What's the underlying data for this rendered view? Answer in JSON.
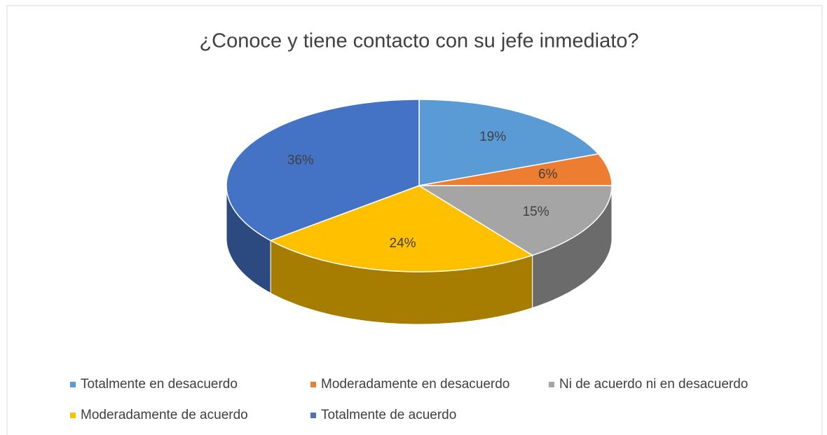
{
  "chart_data": {
    "type": "pie",
    "title": "¿Conoce y tiene contacto con su jefe inmediato?",
    "categories": [
      "Totalmente en desacuerdo",
      "Moderadamente en desacuerdo",
      "Ni de acuerdo ni en desacuerdo",
      "Moderadamente de acuerdo",
      "Totalmente de acuerdo"
    ],
    "values": [
      19,
      6,
      15,
      24,
      36
    ],
    "value_labels": [
      "19%",
      "6%",
      "15%",
      "24%",
      "36%"
    ],
    "colors": [
      "#5b9bd5",
      "#ed7d31",
      "#a5a5a5",
      "#ffc000",
      "#4472c4"
    ],
    "legend": "bottom"
  }
}
